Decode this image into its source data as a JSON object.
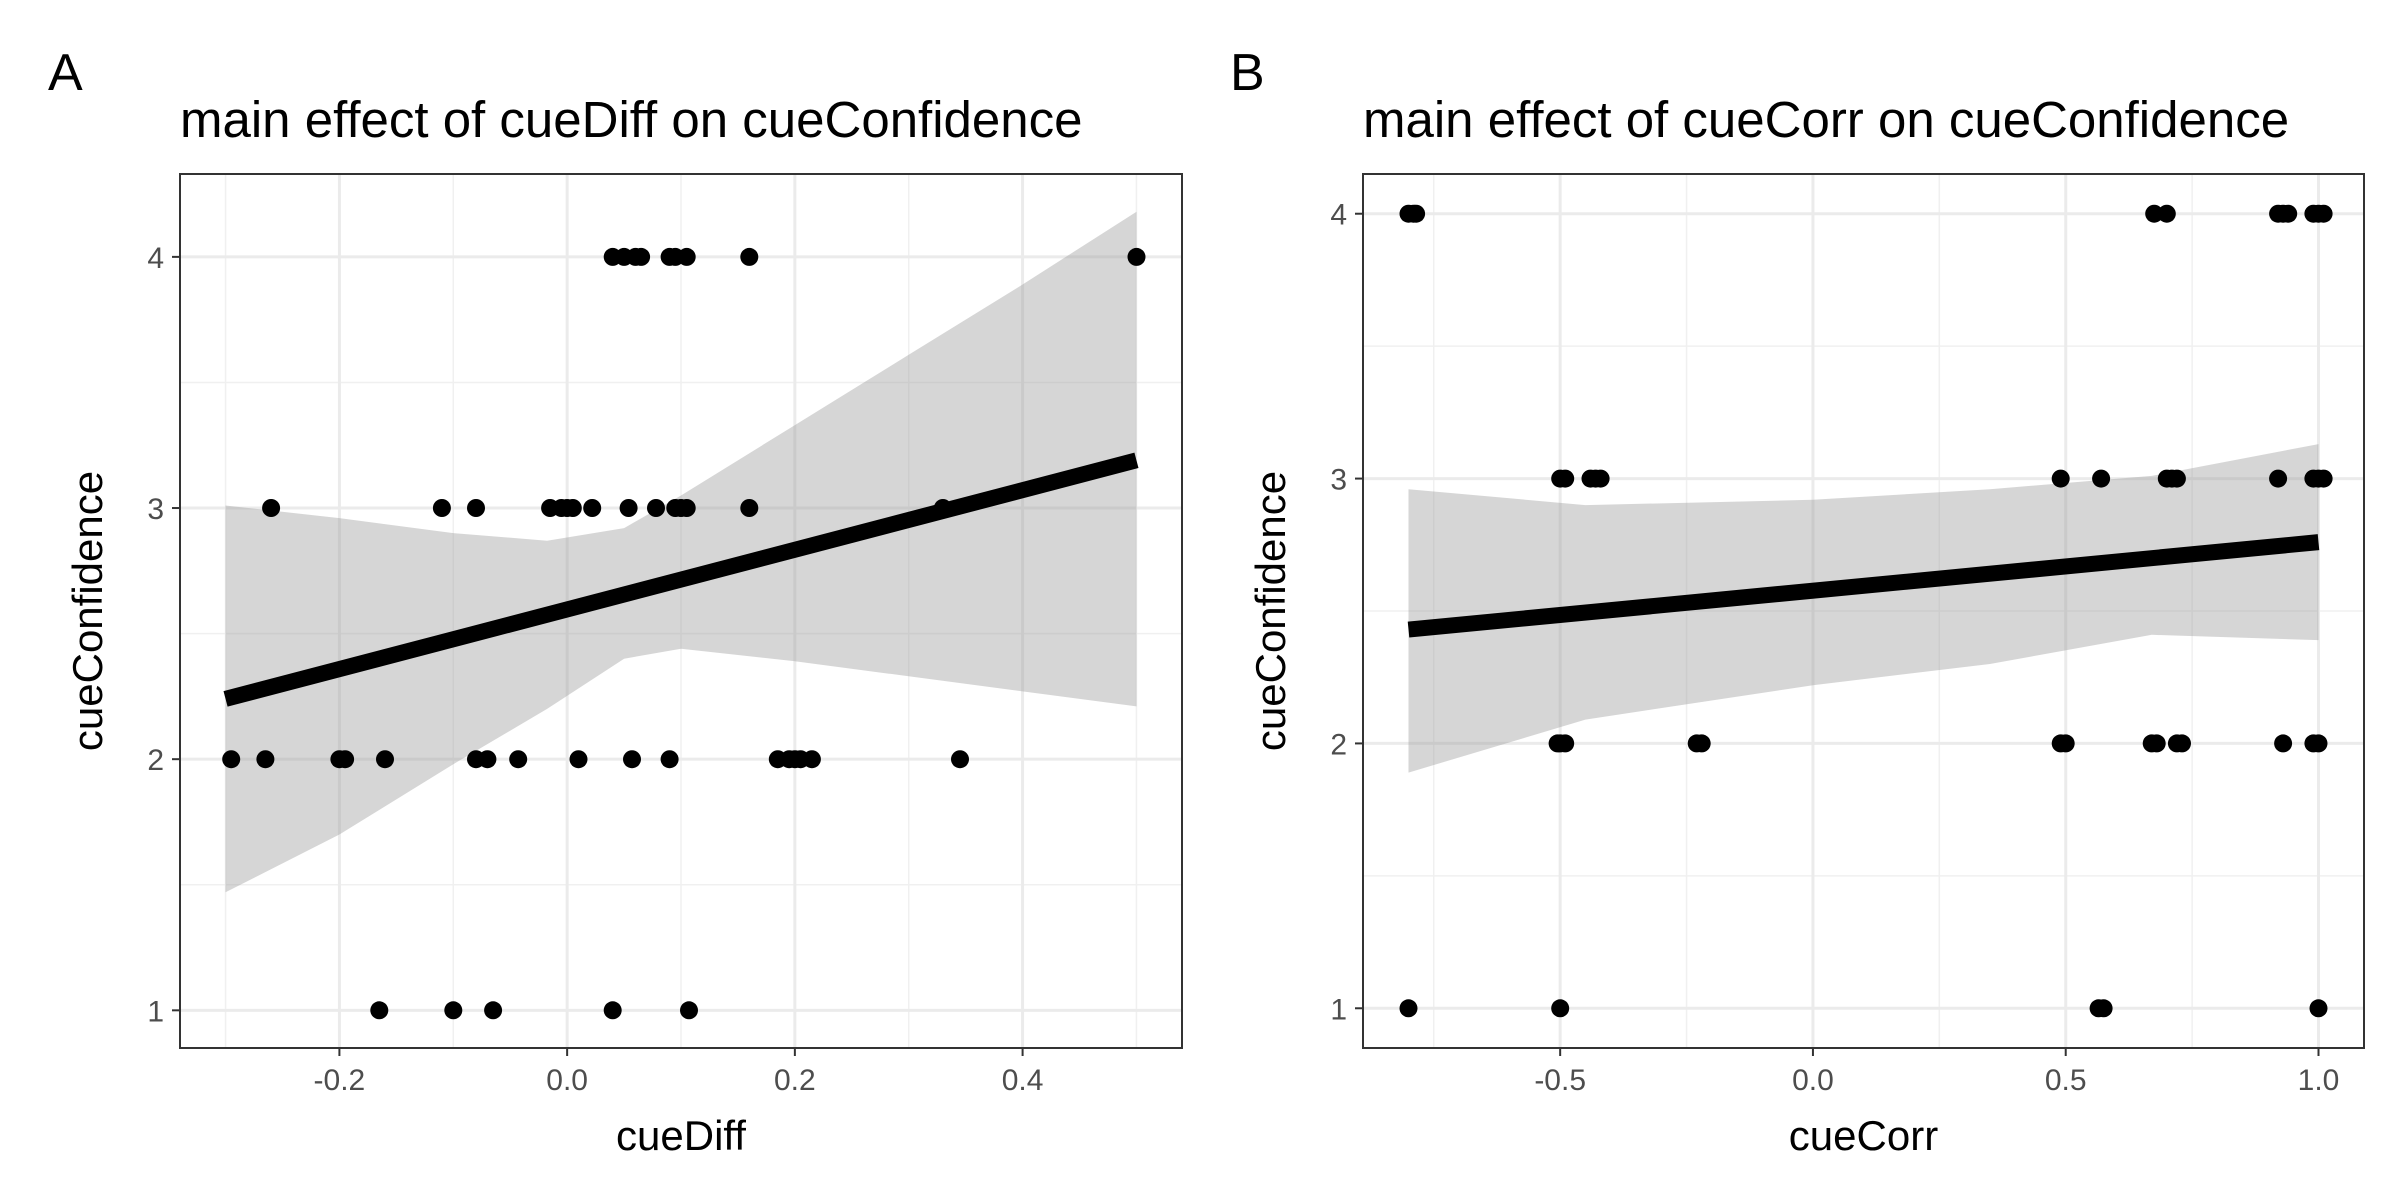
{
  "chart_data": [
    {
      "panel_tag": "A",
      "type": "scatter",
      "title": "main effect of cueDiff on cueConfidence",
      "xlabel": "cueDiff",
      "ylabel": "cueConfidence",
      "xlim": [
        -0.34,
        0.54
      ],
      "ylim": [
        0.85,
        4.33
      ],
      "xticks": [
        -0.2,
        0.0,
        0.2,
        0.4
      ],
      "xtick_labels": [
        "-0.2",
        "0.0",
        "0.2",
        "0.4"
      ],
      "yticks": [
        1,
        2,
        3,
        4
      ],
      "ytick_labels": [
        "1",
        "2",
        "3",
        "4"
      ],
      "grid": true,
      "points": [
        [
          0.04,
          4
        ],
        [
          0.05,
          4
        ],
        [
          0.06,
          4
        ],
        [
          0.065,
          4
        ],
        [
          0.09,
          4
        ],
        [
          0.095,
          4
        ],
        [
          0.105,
          4
        ],
        [
          0.16,
          4
        ],
        [
          0.5,
          4
        ],
        [
          -0.26,
          3
        ],
        [
          -0.11,
          3
        ],
        [
          -0.08,
          3
        ],
        [
          -0.015,
          3
        ],
        [
          -0.005,
          3
        ],
        [
          0.0,
          3
        ],
        [
          0.005,
          3
        ],
        [
          0.022,
          3
        ],
        [
          0.054,
          3
        ],
        [
          0.078,
          3
        ],
        [
          0.095,
          3
        ],
        [
          0.1,
          3
        ],
        [
          0.105,
          3
        ],
        [
          0.16,
          3
        ],
        [
          0.33,
          3
        ],
        [
          -0.295,
          2
        ],
        [
          -0.265,
          2
        ],
        [
          -0.2,
          2
        ],
        [
          -0.195,
          2
        ],
        [
          -0.16,
          2
        ],
        [
          -0.08,
          2
        ],
        [
          -0.07,
          2
        ],
        [
          -0.043,
          2
        ],
        [
          0.01,
          2
        ],
        [
          0.057,
          2
        ],
        [
          0.09,
          2
        ],
        [
          0.185,
          2
        ],
        [
          0.195,
          2
        ],
        [
          0.2,
          2
        ],
        [
          0.205,
          2
        ],
        [
          0.215,
          2
        ],
        [
          0.345,
          2
        ],
        [
          -0.165,
          1
        ],
        [
          -0.1,
          1
        ],
        [
          -0.065,
          1
        ],
        [
          0.04,
          1
        ],
        [
          0.107,
          1
        ]
      ],
      "fit": {
        "x": [
          -0.3,
          0.5
        ],
        "y": [
          2.24,
          3.19
        ]
      },
      "ci_band": {
        "x": [
          -0.3,
          -0.2,
          -0.1,
          -0.0176,
          0.05,
          0.1,
          0.2,
          0.3,
          0.4,
          0.5
        ],
        "lower": [
          1.47,
          1.7,
          1.98,
          2.2,
          2.4,
          2.44,
          2.39,
          2.33,
          2.27,
          2.21
        ],
        "upper": [
          3.01,
          2.96,
          2.9,
          2.87,
          2.92,
          3.05,
          3.33,
          3.61,
          3.89,
          4.18
        ]
      }
    },
    {
      "panel_tag": "B",
      "type": "scatter",
      "title": "main effect of cueCorr on cueConfidence",
      "xlabel": "cueCorr",
      "ylabel": "cueConfidence",
      "xlim": [
        -0.89,
        1.09
      ],
      "ylim": [
        0.85,
        4.15
      ],
      "xticks": [
        -0.5,
        0.0,
        0.5,
        1.0
      ],
      "xtick_labels": [
        "-0.5",
        "0.0",
        "0.5",
        "1.0"
      ],
      "yticks": [
        1,
        2,
        3,
        4
      ],
      "ytick_labels": [
        "1",
        "2",
        "3",
        "4"
      ],
      "grid": true,
      "points": [
        [
          -0.8,
          4
        ],
        [
          -0.79,
          4
        ],
        [
          -0.785,
          4
        ],
        [
          0.675,
          4
        ],
        [
          0.7,
          4
        ],
        [
          0.92,
          4
        ],
        [
          0.93,
          4
        ],
        [
          0.94,
          4
        ],
        [
          0.99,
          4
        ],
        [
          1.0,
          4
        ],
        [
          1.01,
          4
        ],
        [
          -0.5,
          3
        ],
        [
          -0.49,
          3
        ],
        [
          -0.44,
          3
        ],
        [
          -0.43,
          3
        ],
        [
          -0.42,
          3
        ],
        [
          0.49,
          3
        ],
        [
          0.57,
          3
        ],
        [
          0.7,
          3
        ],
        [
          0.71,
          3
        ],
        [
          0.72,
          3
        ],
        [
          0.92,
          3
        ],
        [
          0.99,
          3
        ],
        [
          1.0,
          3
        ],
        [
          1.01,
          3
        ],
        [
          -0.505,
          2
        ],
        [
          -0.5,
          2
        ],
        [
          -0.49,
          2
        ],
        [
          -0.23,
          2
        ],
        [
          -0.22,
          2
        ],
        [
          0.49,
          2
        ],
        [
          0.5,
          2
        ],
        [
          0.67,
          2
        ],
        [
          0.68,
          2
        ],
        [
          0.72,
          2
        ],
        [
          0.73,
          2
        ],
        [
          0.93,
          2
        ],
        [
          0.99,
          2
        ],
        [
          1.0,
          2
        ],
        [
          -0.8,
          1
        ],
        [
          -0.5,
          1
        ],
        [
          0.565,
          1
        ],
        [
          0.575,
          1
        ],
        [
          1.0,
          1
        ]
      ],
      "fit": {
        "x": [
          -0.8,
          1.0
        ],
        "y": [
          2.43,
          2.76
        ]
      },
      "ci_band": {
        "x": [
          -0.8,
          -0.45,
          0.0,
          0.35,
          0.67,
          1.0
        ],
        "lower": [
          1.89,
          2.09,
          2.22,
          2.3,
          2.41,
          2.39
        ],
        "upper": [
          2.96,
          2.9,
          2.92,
          2.96,
          3.01,
          3.13
        ]
      }
    }
  ]
}
